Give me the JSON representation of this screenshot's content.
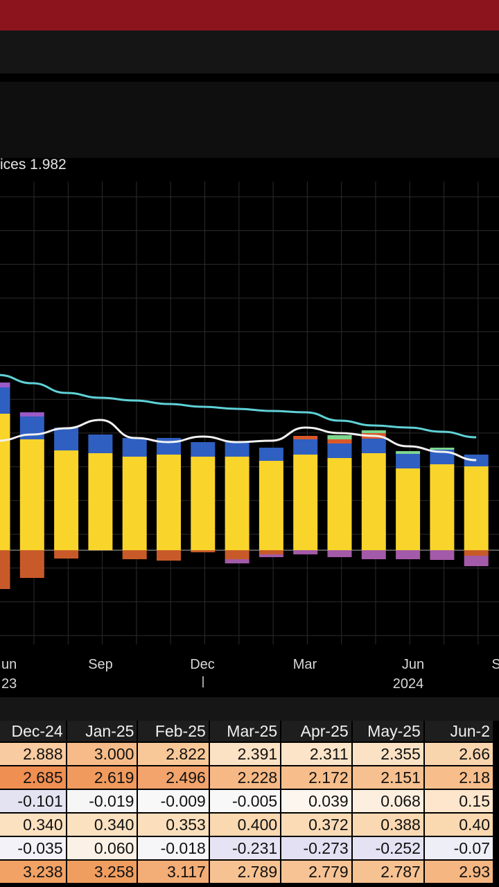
{
  "legend": {
    "text": "ices 1.982"
  },
  "chart_data": {
    "type": "bar",
    "x_axis": {
      "month_labels": [
        "un",
        "Sep",
        "Dec",
        "Mar",
        "Jun",
        "S"
      ],
      "year_labels": [
        "23",
        "2024"
      ]
    },
    "series": [
      {
        "color": "#f9d42a",
        "values": [
          1.97,
          1.6,
          1.44,
          1.4,
          1.35,
          1.38,
          1.35,
          1.35,
          1.29,
          1.38,
          1.33,
          1.4,
          1.18,
          1.24,
          1.21
        ]
      },
      {
        "color": "#2f5fc1",
        "values": [
          0.38,
          0.33,
          0.33,
          0.27,
          0.27,
          0.24,
          0.21,
          0.21,
          0.19,
          0.22,
          0.21,
          0.21,
          0.21,
          0.21,
          0.17
        ]
      },
      {
        "color": "#9a5ac8",
        "values": [
          0.07,
          0.06,
          0.0,
          0.0,
          0.0,
          0.0,
          0.0,
          0.0,
          0.0,
          0.0,
          0.0,
          0.0,
          0.0,
          0.0,
          0.0
        ]
      },
      {
        "color": "#d9582a",
        "values": [
          0.0,
          0.0,
          0.0,
          0.0,
          0.0,
          0.0,
          0.0,
          0.0,
          0.0,
          0.05,
          0.06,
          0.08,
          0.0,
          0.0,
          0.0
        ]
      },
      {
        "color": "#7cd68e",
        "values": [
          0.0,
          0.0,
          0.0,
          0.0,
          0.0,
          0.0,
          0.0,
          0.0,
          0.0,
          0.0,
          0.06,
          0.04,
          0.04,
          0.03,
          0.0
        ]
      },
      {
        "color": "#c85a2a",
        "values": [
          -0.56,
          -0.4,
          -0.12,
          0.0,
          -0.13,
          -0.15,
          -0.03,
          -0.13,
          -0.06,
          0.0,
          0.0,
          0.0,
          0.0,
          0.0,
          -0.08
        ]
      },
      {
        "color": "#a35aa8",
        "values": [
          0.0,
          0.0,
          0.0,
          0.0,
          0.0,
          0.0,
          0.0,
          -0.06,
          -0.04,
          -0.06,
          -0.1,
          -0.13,
          -0.13,
          -0.14,
          -0.15
        ]
      }
    ],
    "lines": [
      {
        "color": "#5fd1d6",
        "values": [
          2.53,
          2.41,
          2.27,
          2.2,
          2.16,
          2.11,
          2.07,
          2.04,
          2.01,
          1.99,
          1.87,
          1.8,
          1.77,
          1.71,
          1.63
        ]
      },
      {
        "color": "#f2f2f2",
        "values": [
          1.58,
          1.67,
          1.76,
          1.88,
          1.62,
          1.56,
          1.64,
          1.56,
          1.58,
          1.77,
          1.69,
          1.65,
          1.5,
          1.42,
          1.3
        ]
      }
    ]
  },
  "table": {
    "headers": [
      "Dec-24",
      "Jan-25",
      "Feb-25",
      "Mar-25",
      "Apr-25",
      "May-25",
      "Jun-2"
    ],
    "rows": [
      {
        "cells": [
          "2.888",
          "3.000",
          "2.822",
          "2.391",
          "2.311",
          "2.355",
          "2.66"
        ],
        "colors": [
          "#f8cba0",
          "#f6bb88",
          "#f8c898",
          "#fbe2c4",
          "#fbe4c8",
          "#fbe2c4",
          "#f9d5ae"
        ]
      },
      {
        "cells": [
          "2.685",
          "2.619",
          "2.496",
          "2.228",
          "2.172",
          "2.151",
          "2.18"
        ],
        "colors": [
          "#ef8f52",
          "#f09a5e",
          "#f2a46c",
          "#f6b986",
          "#f7be8c",
          "#f7c090",
          "#f7be8c"
        ]
      },
      {
        "cells": [
          "-0.101",
          "-0.019",
          "-0.009",
          "-0.005",
          "0.039",
          "0.068",
          "0.15"
        ],
        "colors": [
          "#e3e3f2",
          "#f6f6f6",
          "#f8f8f8",
          "#f8f8f8",
          "#fdf6ee",
          "#fcefdf",
          "#fde6cc"
        ]
      },
      {
        "cells": [
          "0.340",
          "0.340",
          "0.353",
          "0.400",
          "0.372",
          "0.388",
          "0.40"
        ],
        "colors": [
          "#fbe1c0",
          "#fbe1c0",
          "#fbdfbc",
          "#fad8b0",
          "#fadbb6",
          "#fad9b2",
          "#fad8b0"
        ]
      },
      {
        "cells": [
          "-0.035",
          "0.060",
          "-0.018",
          "-0.231",
          "-0.273",
          "-0.252",
          "-0.07"
        ],
        "colors": [
          "#f2f2f8",
          "#fbf1e6",
          "#f6f6f8",
          "#e6e4f4",
          "#e2e0f2",
          "#e4e2f3",
          "#eeeef6"
        ]
      },
      {
        "cells": [
          "3.238",
          "3.258",
          "3.117",
          "2.789",
          "2.779",
          "2.787",
          "2.93"
        ],
        "colors": [
          "#f1a264",
          "#f09e60",
          "#f3ad76",
          "#f7c292",
          "#f7c394",
          "#f7c292",
          "#f5b682"
        ]
      }
    ]
  }
}
